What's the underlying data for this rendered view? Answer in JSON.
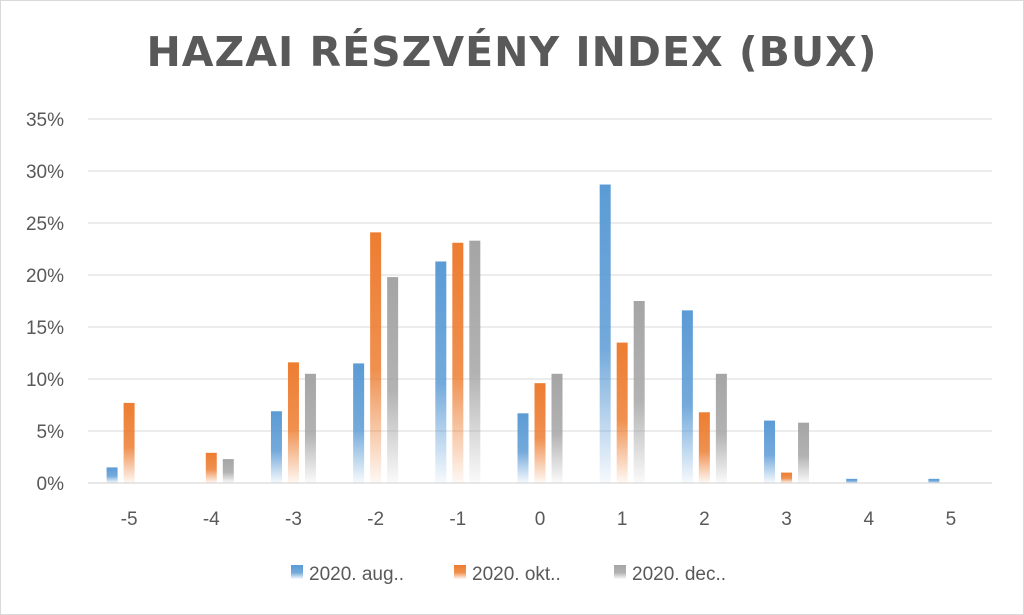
{
  "chart_data": {
    "type": "bar",
    "title": "HAZAI RÉSZVÉNY INDEX (BUX)",
    "xlabel": "",
    "ylabel": "",
    "categories": [
      "-5",
      "-4",
      "-3",
      "-2",
      "-1",
      "0",
      "1",
      "2",
      "3",
      "4",
      "5"
    ],
    "ylim": [
      0,
      0.35
    ],
    "yticks": [
      0,
      0.05,
      0.1,
      0.15,
      0.2,
      0.25,
      0.3,
      0.35
    ],
    "ytick_labels": [
      "0%",
      "5%",
      "10%",
      "15%",
      "20%",
      "25%",
      "30%",
      "35%"
    ],
    "grid": true,
    "legend_position": "bottom",
    "series": [
      {
        "name": "2020. aug..",
        "color": "#5b9bd5",
        "values": [
          0.015,
          0.0,
          0.069,
          0.115,
          0.213,
          0.067,
          0.287,
          0.166,
          0.06,
          0.004,
          0.004
        ]
      },
      {
        "name": "2020. okt..",
        "color": "#ed7d31",
        "values": [
          0.077,
          0.029,
          0.116,
          0.241,
          0.231,
          0.096,
          0.135,
          0.068,
          0.01,
          0.0,
          0.0
        ]
      },
      {
        "name": "2020. dec..",
        "color": "#a5a5a5",
        "values": [
          0.0,
          0.023,
          0.105,
          0.198,
          0.233,
          0.105,
          0.175,
          0.105,
          0.058,
          0.0,
          0.0
        ]
      }
    ]
  }
}
